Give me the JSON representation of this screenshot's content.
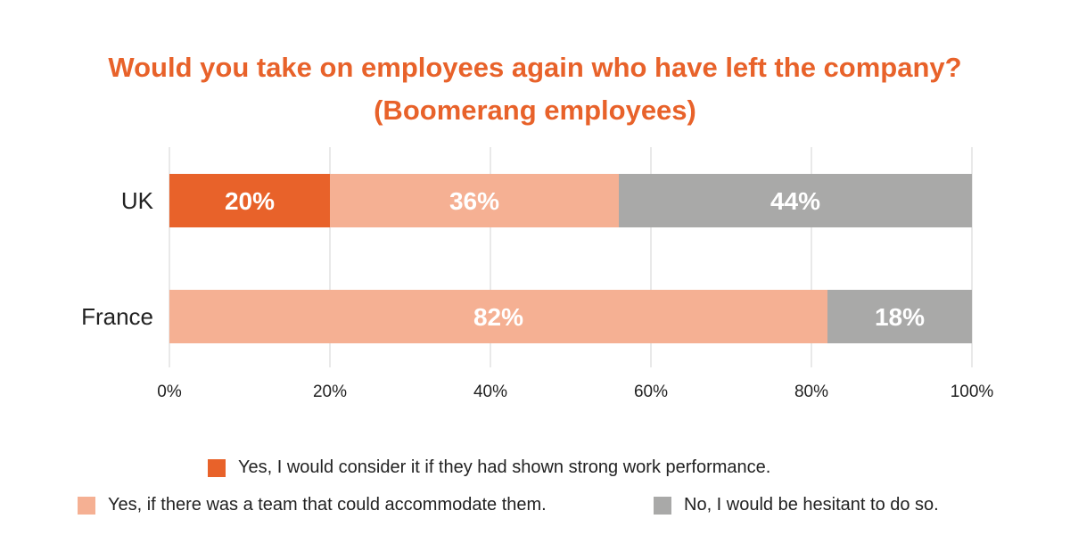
{
  "title": {
    "line1": "Would you take on employees again who have left the company?",
    "line2": "(Boomerang employees)"
  },
  "colors": {
    "title": "#e8622a",
    "series": [
      "#e8622a",
      "#f5b093",
      "#a9a9a8"
    ],
    "grid": "#e2e2e2",
    "text": "#222222"
  },
  "chart_data": {
    "type": "bar",
    "orientation": "horizontal",
    "stacked": true,
    "title": "Would you take on employees again who have left the company? (Boomerang employees)",
    "categories": [
      "UK",
      "France"
    ],
    "series": [
      {
        "name": "Yes, I would consider it if they had shown strong work performance.",
        "values": [
          20,
          0
        ],
        "labels": [
          "20%",
          ""
        ]
      },
      {
        "name": "Yes, if there was a team that could accommodate them.",
        "values": [
          36,
          82
        ],
        "labels": [
          "36%",
          "82%"
        ]
      },
      {
        "name": "No, I would be hesitant to do so.",
        "values": [
          44,
          18
        ],
        "labels": [
          "44%",
          "18%"
        ]
      }
    ],
    "xlim": [
      0,
      100
    ],
    "xticks": [
      "0%",
      "20%",
      "40%",
      "60%",
      "80%",
      "100%"
    ],
    "grid": true,
    "legend_position": "bottom"
  }
}
